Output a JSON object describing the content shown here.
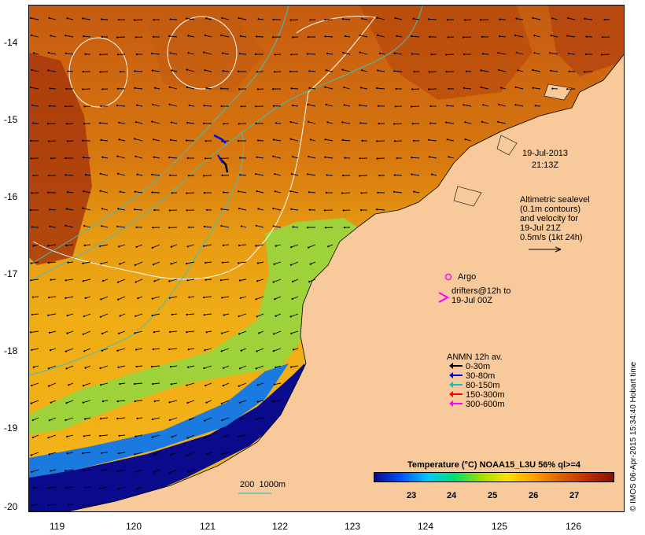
{
  "map": {
    "lon_ticks": [
      "119",
      "120",
      "121",
      "122",
      "123",
      "124",
      "125",
      "126"
    ],
    "lat_ticks": [
      "-14",
      "-15",
      "-16",
      "-17",
      "-18",
      "-19",
      "-20"
    ],
    "date_label": "19-Jul-2013",
    "time_label": "21:13Z",
    "altimetry_note": [
      "Altimetric sealevel",
      "(0.1m contours)",
      "and velocity for",
      "19-Jul 21Z",
      "0.5m/s (1kt 24h)"
    ],
    "argo_label": "Argo",
    "drifter_label": [
      "drifters@12h to",
      "19-Jul 00Z"
    ],
    "isobath_label": "200  1000m",
    "credit": "© IMOS 06-Apr-2015 15:34:40 Hobart time",
    "colors": {
      "land": "#f8c99a",
      "isobath": "#40c0c0",
      "contour": "#ffffff",
      "argo": "#ff00ff"
    }
  },
  "anmn_legend": {
    "title": "ANMN 12h av.",
    "items": [
      {
        "label": "0-30m",
        "color": "#000000"
      },
      {
        "label": "30-80m",
        "color": "#0000ff"
      },
      {
        "label": "80-150m",
        "color": "#00c8c8"
      },
      {
        "label": "150-300m",
        "color": "#ff0000"
      },
      {
        "label": "300-600m",
        "color": "#ff00ff"
      }
    ]
  },
  "colorbar": {
    "title": "Temperature (°C) NOAA15_L3U 56% ql>=4",
    "ticks": [
      "23",
      "24",
      "25",
      "26",
      "27"
    ],
    "colors": [
      "#0a0a8c",
      "#0050ff",
      "#00c8ff",
      "#00e070",
      "#a0e000",
      "#ffe000",
      "#ffa000",
      "#e06000",
      "#c03000",
      "#8c1000"
    ]
  }
}
